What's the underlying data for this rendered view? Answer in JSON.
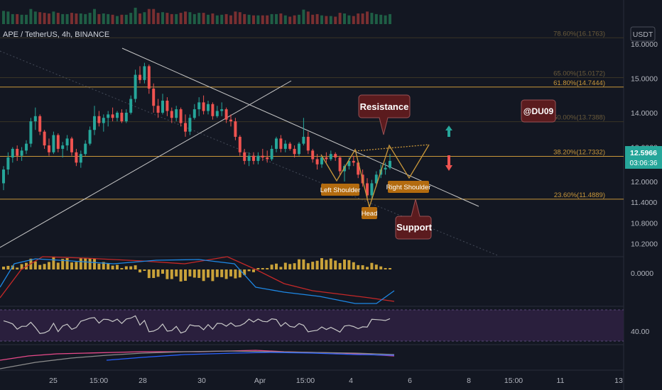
{
  "header": {
    "symbol": "APE / TetherUS, 4h, BINANCE",
    "currency_button": "USDT"
  },
  "price_axis": {
    "ticks": [
      "16.0000",
      "15.0000",
      "14.0000",
      "13.0000",
      "12.0000",
      "11.4000",
      "10.8000",
      "10.2000"
    ],
    "current_price": "12.5966",
    "countdown": "03:06:36"
  },
  "time_axis": {
    "ticks": [
      "25",
      "15:00",
      "28",
      "30",
      "Apr",
      "15:00",
      "4",
      "6",
      "8",
      "15:00",
      "11",
      "13"
    ]
  },
  "fib_levels": [
    {
      "label": "78.60%(16.1763)",
      "price": 16.1763,
      "dim": true
    },
    {
      "label": "65.00%(15.0172)",
      "price": 15.0172,
      "dim": true
    },
    {
      "label": "61.80%(14.7444)",
      "price": 14.7444,
      "dim": false
    },
    {
      "label": "50.00%(13.7388)",
      "price": 13.7388,
      "dim": true
    },
    {
      "label": "38.20%(12.7332)",
      "price": 12.7332,
      "dim": false
    },
    {
      "label": "23.60%(11.4889)",
      "price": 11.4889,
      "dim": false
    }
  ],
  "annotations": {
    "resistance": "Resistance",
    "support": "Support",
    "watermark": "@DU09",
    "left_shoulder": "Left Shoulder",
    "head": "Head",
    "right_shoulder": "Right Shoulder"
  },
  "indicators": {
    "macd_zero_label": "0.0000",
    "rsi_label": "40.00"
  },
  "colors": {
    "background": "#131722",
    "up": "#26a69a",
    "down": "#ef5350",
    "fib": "#c9973a",
    "annotation_box": "#5b1b1e",
    "pattern_label": "#b36b0f",
    "arrow_up": "#26a69a",
    "arrow_down": "#ef5350"
  },
  "chart_data": {
    "type": "candlestick",
    "title": "APE / TetherUS, 4h, BINANCE",
    "ylim": [
      9.9,
      16.45
    ],
    "candles": [
      [
        11.95,
        12.45,
        11.75,
        12.35
      ],
      [
        12.35,
        12.85,
        12.2,
        12.7
      ],
      [
        12.7,
        13.0,
        12.55,
        12.95
      ],
      [
        12.95,
        13.05,
        12.6,
        12.75
      ],
      [
        12.75,
        13.0,
        12.6,
        12.9
      ],
      [
        12.9,
        13.2,
        12.8,
        13.1
      ],
      [
        13.1,
        13.85,
        13.0,
        13.75
      ],
      [
        13.75,
        14.15,
        13.5,
        13.9
      ],
      [
        13.9,
        13.95,
        13.35,
        13.45
      ],
      [
        13.45,
        13.5,
        12.95,
        13.05
      ],
      [
        13.05,
        13.25,
        12.75,
        12.85
      ],
      [
        12.85,
        13.45,
        12.8,
        13.35
      ],
      [
        13.35,
        13.4,
        12.85,
        12.95
      ],
      [
        12.95,
        13.15,
        12.7,
        13.05
      ],
      [
        13.05,
        13.35,
        12.9,
        13.25
      ],
      [
        13.25,
        13.3,
        12.75,
        12.85
      ],
      [
        12.85,
        12.95,
        12.45,
        12.55
      ],
      [
        12.55,
        12.9,
        12.4,
        12.8
      ],
      [
        12.8,
        13.2,
        12.75,
        13.1
      ],
      [
        13.1,
        13.6,
        13.05,
        13.5
      ],
      [
        13.5,
        14.2,
        13.35,
        13.9
      ],
      [
        13.9,
        14.05,
        13.6,
        13.7
      ],
      [
        13.7,
        13.95,
        13.45,
        13.85
      ],
      [
        13.85,
        14.05,
        13.6,
        13.95
      ],
      [
        13.95,
        14.15,
        13.75,
        13.85
      ],
      [
        13.85,
        14.05,
        13.75,
        14.0
      ],
      [
        14.0,
        14.1,
        13.7,
        13.75
      ],
      [
        13.75,
        14.1,
        13.7,
        14.0
      ],
      [
        14.0,
        14.5,
        13.95,
        14.4
      ],
      [
        14.4,
        15.25,
        14.3,
        15.1
      ],
      [
        15.1,
        15.35,
        14.85,
        14.95
      ],
      [
        14.95,
        15.45,
        14.85,
        15.35
      ],
      [
        15.35,
        15.4,
        14.55,
        14.7
      ],
      [
        14.7,
        14.85,
        14.0,
        14.2
      ],
      [
        14.2,
        14.4,
        13.85,
        14.0
      ],
      [
        14.0,
        14.55,
        13.95,
        14.35
      ],
      [
        14.35,
        14.45,
        13.9,
        14.05
      ],
      [
        14.05,
        14.15,
        13.7,
        13.85
      ],
      [
        13.85,
        14.2,
        13.75,
        14.1
      ],
      [
        14.1,
        14.15,
        13.6,
        13.7
      ],
      [
        13.7,
        13.95,
        13.3,
        13.45
      ],
      [
        13.45,
        13.95,
        13.35,
        13.85
      ],
      [
        13.85,
        14.25,
        13.8,
        14.1
      ],
      [
        14.1,
        14.45,
        13.9,
        14.3
      ],
      [
        14.3,
        14.5,
        13.95,
        14.05
      ],
      [
        14.05,
        14.35,
        13.95,
        14.25
      ],
      [
        14.25,
        14.3,
        13.8,
        13.9
      ],
      [
        13.9,
        14.2,
        13.85,
        14.05
      ],
      [
        14.05,
        14.3,
        13.9,
        14.1
      ],
      [
        14.1,
        14.15,
        13.7,
        13.8
      ],
      [
        13.8,
        13.95,
        13.6,
        13.75
      ],
      [
        13.75,
        13.85,
        13.2,
        13.3
      ],
      [
        13.3,
        13.35,
        12.75,
        12.85
      ],
      [
        12.85,
        12.95,
        12.5,
        12.6
      ],
      [
        12.6,
        12.85,
        12.45,
        12.75
      ],
      [
        12.75,
        12.85,
        12.5,
        12.6
      ],
      [
        12.6,
        12.85,
        12.5,
        12.75
      ],
      [
        12.75,
        12.95,
        12.6,
        12.7
      ],
      [
        12.7,
        12.9,
        12.55,
        12.65
      ],
      [
        12.65,
        13.05,
        12.6,
        12.95
      ],
      [
        12.95,
        13.3,
        12.85,
        13.25
      ],
      [
        13.25,
        13.35,
        12.85,
        12.95
      ],
      [
        12.95,
        13.2,
        12.85,
        13.1
      ],
      [
        13.1,
        13.15,
        12.9,
        12.95
      ],
      [
        12.95,
        13.05,
        12.7,
        12.8
      ],
      [
        12.8,
        13.15,
        12.75,
        13.1
      ],
      [
        13.1,
        13.85,
        13.05,
        13.3
      ],
      [
        13.3,
        13.45,
        12.8,
        12.9
      ],
      [
        12.9,
        12.95,
        12.55,
        12.65
      ],
      [
        12.65,
        12.8,
        12.35,
        12.5
      ],
      [
        12.5,
        12.75,
        12.4,
        12.7
      ],
      [
        12.7,
        12.85,
        12.55,
        12.65
      ],
      [
        12.65,
        12.9,
        12.6,
        12.8
      ],
      [
        12.8,
        12.85,
        12.6,
        12.7
      ],
      [
        12.7,
        12.75,
        12.2,
        12.3
      ],
      [
        12.3,
        12.5,
        12.0,
        12.45
      ],
      [
        12.45,
        12.7,
        12.35,
        12.6
      ],
      [
        12.6,
        12.75,
        12.45,
        12.55
      ],
      [
        12.55,
        12.6,
        12.1,
        12.2
      ],
      [
        12.2,
        12.35,
        11.85,
        11.95
      ],
      [
        11.95,
        12.1,
        11.45,
        11.6
      ],
      [
        11.6,
        12.05,
        11.5,
        11.95
      ],
      [
        11.95,
        12.3,
        11.85,
        12.2
      ],
      [
        12.2,
        12.5,
        12.1,
        12.35
      ],
      [
        12.35,
        12.55,
        12.2,
        12.4
      ],
      [
        12.4,
        12.8,
        12.35,
        12.6
      ]
    ]
  }
}
